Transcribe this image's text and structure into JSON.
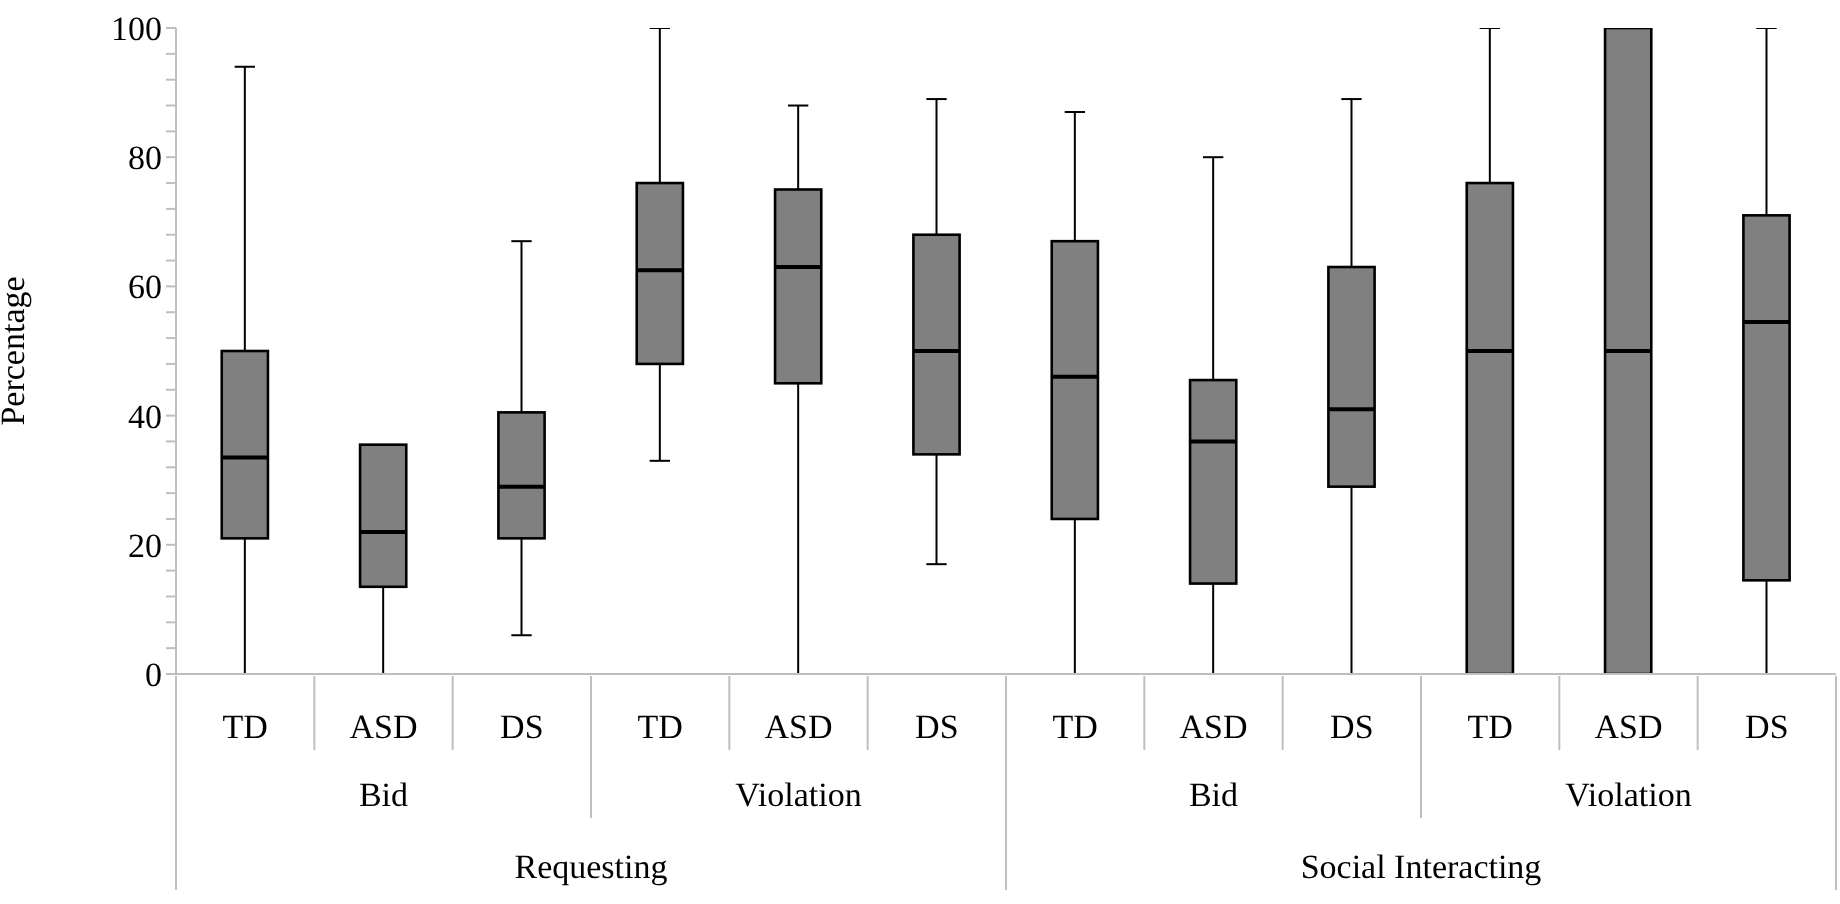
{
  "chart_data": {
    "type": "box",
    "ylabel": "Percentage",
    "color": "#808080",
    "categories": [
      "TD",
      "ASD",
      "DS",
      "TD",
      "ASD",
      "DS",
      "TD",
      "ASD",
      "DS",
      "TD",
      "ASD",
      "DS"
    ],
    "annotations": [
      "Bid",
      "Violation",
      "Bid",
      "Violation",
      "Requesting",
      "Social Interacting"
    ],
    "ylim": [
      0,
      100
    ],
    "yticks": [
      0,
      {
        "value": 4,
        "label": null
      },
      {
        "value": 8,
        "label": null
      },
      {
        "value": 12,
        "label": null
      },
      {
        "value": 16,
        "label": null
      },
      20,
      {
        "value": 24,
        "label": null
      },
      {
        "value": 28,
        "label": null
      },
      {
        "value": 32,
        "label": null
      },
      {
        "value": 36,
        "label": null
      },
      40,
      {
        "value": 44,
        "label": null
      },
      {
        "value": 48,
        "label": null
      },
      {
        "value": 52,
        "label": null
      },
      {
        "value": 56,
        "label": null
      },
      60,
      {
        "value": 64,
        "label": null
      },
      {
        "value": 68,
        "label": null
      },
      {
        "value": 72,
        "label": null
      },
      {
        "value": 76,
        "label": null
      },
      80,
      {
        "value": 84,
        "label": null
      },
      {
        "value": 88,
        "label": null
      },
      {
        "value": 92,
        "label": null
      },
      {
        "value": 96,
        "label": null
      },
      100
    ],
    "grid": false,
    "legend": false,
    "boxes": [
      {
        "low": 0,
        "q1": 21,
        "median": 33.5,
        "q3": 50,
        "high": 94
      },
      {
        "low": 0,
        "q1": 13.5,
        "median": 22,
        "q3": 35.5,
        "high": 35.5
      },
      {
        "low": 6,
        "q1": 21,
        "median": 29,
        "q3": 40.5,
        "high": 67
      },
      {
        "low": 33,
        "q1": 48,
        "median": 62.5,
        "q3": 76,
        "high": 100
      },
      {
        "low": 0,
        "q1": 45,
        "median": 63,
        "q3": 75,
        "high": 88
      },
      {
        "low": 17,
        "q1": 34,
        "median": 50,
        "q3": 68,
        "high": 89
      },
      {
        "low": 0,
        "q1": 24,
        "median": 46,
        "q3": 67,
        "high": 87
      },
      {
        "low": 0,
        "q1": 14,
        "median": 36,
        "q3": 45.5,
        "high": 80
      },
      {
        "low": 0,
        "q1": 29,
        "median": 41,
        "q3": 63,
        "high": 89
      },
      {
        "low": 0,
        "q1": 0,
        "median": 50,
        "q3": 76,
        "high": 100
      },
      {
        "low": 0,
        "q1": 0,
        "median": 50,
        "q3": 100,
        "high": 100
      },
      {
        "low": 0,
        "q1": 14.5,
        "median": 54.5,
        "q3": 71,
        "high": 100
      }
    ]
  }
}
